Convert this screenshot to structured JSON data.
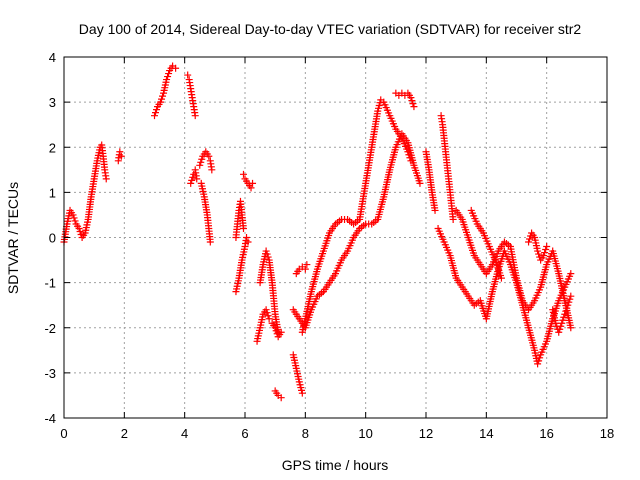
{
  "chart_data": {
    "type": "scatter",
    "title": "Day 100 of 2014, Sidereal Day-to-day VTEC variation (SDTVAR) for receiver str2",
    "xlabel": "GPS time / hours",
    "ylabel": "SDTVAR / TECUs",
    "xlim": [
      0,
      18
    ],
    "ylim": [
      -4,
      4
    ],
    "xticks": [
      0,
      2,
      4,
      6,
      8,
      10,
      12,
      14,
      16,
      18
    ],
    "yticks": [
      -4,
      -3,
      -2,
      -1,
      0,
      1,
      2,
      3,
      4
    ],
    "xtick_labels": [
      "0",
      "2",
      "4",
      "6",
      "8",
      "10",
      "12",
      "14",
      "16",
      "18"
    ],
    "ytick_labels": [
      "-4",
      "-3",
      "-2",
      "-1",
      "0",
      "1",
      "2",
      "3",
      "4"
    ],
    "grid": true,
    "marker": "plus",
    "color": "#ff0000",
    "segments": [
      {
        "x": [
          0.0,
          0.1,
          0.2,
          0.3,
          0.4,
          0.5,
          0.6,
          0.7,
          0.8,
          0.9,
          1.0,
          1.1,
          1.2,
          1.25,
          1.3,
          1.35,
          1.4
        ],
        "y": [
          -0.1,
          0.3,
          0.6,
          0.5,
          0.3,
          0.2,
          0.0,
          0.1,
          0.4,
          0.9,
          1.3,
          1.7,
          2.0,
          2.05,
          1.8,
          1.5,
          1.3
        ]
      },
      {
        "x": [
          1.8,
          1.85,
          1.9
        ],
        "y": [
          1.7,
          1.9,
          1.8
        ]
      },
      {
        "x": [
          3.0,
          3.1,
          3.2,
          3.3,
          3.4,
          3.5,
          3.6,
          3.7
        ],
        "y": [
          2.7,
          2.9,
          3.0,
          3.2,
          3.5,
          3.7,
          3.8,
          3.75
        ]
      },
      {
        "x": [
          4.1,
          4.15,
          4.2,
          4.25,
          4.3,
          4.35
        ],
        "y": [
          3.6,
          3.5,
          3.3,
          3.1,
          2.9,
          2.7
        ]
      },
      {
        "x": [
          4.2,
          4.3,
          4.35,
          4.4
        ],
        "y": [
          1.2,
          1.4,
          1.5,
          1.3
        ]
      },
      {
        "x": [
          4.5,
          4.6,
          4.7,
          4.8,
          4.85,
          4.9
        ],
        "y": [
          1.6,
          1.8,
          1.9,
          1.8,
          1.7,
          1.5
        ]
      },
      {
        "x": [
          4.55,
          4.65,
          4.75,
          4.8,
          4.85
        ],
        "y": [
          1.2,
          0.9,
          0.5,
          0.2,
          -0.1
        ]
      },
      {
        "x": [
          5.7,
          5.8,
          5.9,
          6.0,
          6.05,
          6.1
        ],
        "y": [
          -1.2,
          -0.9,
          -0.5,
          -0.2,
          0.0,
          -0.1
        ]
      },
      {
        "x": [
          5.7,
          5.75,
          5.8,
          5.85,
          5.9,
          5.95
        ],
        "y": [
          0.0,
          0.3,
          0.6,
          0.8,
          0.5,
          0.2
        ]
      },
      {
        "x": [
          5.95,
          6.0,
          6.1,
          6.2,
          6.25
        ],
        "y": [
          1.4,
          1.3,
          1.2,
          1.1,
          1.2
        ]
      },
      {
        "x": [
          6.5,
          6.6,
          6.7,
          6.8,
          6.9,
          7.0,
          7.1
        ],
        "y": [
          -1.0,
          -0.6,
          -0.3,
          -0.5,
          -1.0,
          -1.7,
          -2.1
        ]
      },
      {
        "x": [
          6.4,
          6.5,
          6.6,
          6.7,
          6.8
        ],
        "y": [
          -2.3,
          -2.0,
          -1.7,
          -1.6,
          -1.8
        ]
      },
      {
        "x": [
          6.9,
          7.0,
          7.1,
          7.2
        ],
        "y": [
          -1.9,
          -2.0,
          -2.2,
          -2.1
        ]
      },
      {
        "x": [
          7.0,
          7.1,
          7.2
        ],
        "y": [
          -3.4,
          -3.5,
          -3.55
        ]
      },
      {
        "x": [
          7.6,
          7.7,
          7.8,
          7.9
        ],
        "y": [
          -2.6,
          -2.9,
          -3.2,
          -3.45
        ]
      },
      {
        "x": [
          7.7,
          7.8,
          7.9,
          8.0,
          8.05
        ],
        "y": [
          -0.8,
          -0.7,
          -0.65,
          -0.7,
          -0.6
        ]
      },
      {
        "x": [
          7.9,
          8.0,
          8.2,
          8.4,
          8.6,
          8.8,
          9.0,
          9.2,
          9.4,
          9.6,
          9.8,
          10.0,
          10.2,
          10.4,
          10.5,
          10.6,
          10.8,
          11.0,
          11.2,
          11.4,
          11.5
        ],
        "y": [
          -2.1,
          -1.8,
          -1.2,
          -0.7,
          -0.3,
          0.1,
          0.3,
          0.4,
          0.4,
          0.3,
          0.4,
          1.2,
          2.0,
          2.8,
          3.05,
          3.0,
          2.7,
          2.4,
          2.2,
          1.9,
          1.7
        ]
      },
      {
        "x": [
          7.6,
          7.8,
          8.0,
          8.2,
          8.4,
          8.6,
          8.8,
          9.0,
          9.2,
          9.4,
          9.6,
          9.8,
          10.0,
          10.2,
          10.4,
          10.6,
          10.8,
          11.0,
          11.2,
          11.4,
          11.6,
          11.8
        ],
        "y": [
          -1.6,
          -1.8,
          -2.0,
          -1.6,
          -1.3,
          -1.2,
          -1.0,
          -0.8,
          -0.5,
          -0.3,
          0.0,
          0.2,
          0.3,
          0.3,
          0.4,
          0.9,
          1.5,
          2.0,
          2.3,
          2.1,
          1.6,
          1.2
        ]
      },
      {
        "x": [
          11.0,
          11.1,
          11.2,
          11.3,
          11.4,
          11.5,
          11.6
        ],
        "y": [
          3.2,
          3.15,
          3.2,
          3.15,
          3.2,
          3.1,
          2.9
        ]
      },
      {
        "x": [
          12.0,
          12.1,
          12.2,
          12.3
        ],
        "y": [
          1.9,
          1.5,
          1.0,
          0.6
        ]
      },
      {
        "x": [
          12.5,
          12.55,
          12.6,
          12.7,
          12.8,
          12.9
        ],
        "y": [
          2.7,
          2.5,
          2.2,
          1.6,
          1.0,
          0.4
        ]
      },
      {
        "x": [
          12.4,
          12.6,
          12.8,
          13.0,
          13.2,
          13.4,
          13.6,
          13.8,
          14.0,
          14.2,
          14.4,
          14.6,
          14.8,
          15.0,
          15.2,
          15.4,
          15.6,
          15.7,
          15.8,
          16.0,
          16.2,
          16.4,
          16.6,
          16.8
        ],
        "y": [
          0.2,
          -0.1,
          -0.4,
          -0.9,
          -1.1,
          -1.3,
          -1.5,
          -1.4,
          -1.8,
          -1.2,
          -0.7,
          -0.3,
          -0.6,
          -1.0,
          -1.5,
          -2.0,
          -2.5,
          -2.8,
          -2.6,
          -2.3,
          -1.8,
          -1.4,
          -1.1,
          -0.8
        ]
      },
      {
        "x": [
          13.0,
          13.2,
          13.4,
          13.6,
          13.8,
          14.0,
          14.2,
          14.4,
          14.6,
          14.8,
          15.0,
          15.2,
          15.4,
          15.6,
          15.8,
          16.0,
          16.2,
          16.4,
          16.6,
          16.8
        ],
        "y": [
          0.6,
          0.4,
          0.0,
          -0.4,
          -0.6,
          -0.8,
          -0.6,
          -0.3,
          -0.1,
          -0.2,
          -0.9,
          -1.4,
          -1.6,
          -1.4,
          -1.1,
          -0.6,
          -0.3,
          -0.8,
          -1.4,
          -2.0
        ]
      },
      {
        "x": [
          15.4,
          15.5,
          15.6,
          15.7,
          15.8,
          15.9,
          16.0
        ],
        "y": [
          -0.1,
          0.1,
          0.0,
          -0.3,
          -0.5,
          -0.4,
          -0.2
        ]
      },
      {
        "x": [
          16.2,
          16.3,
          16.4,
          16.5,
          16.6,
          16.7,
          16.8
        ],
        "y": [
          -1.6,
          -1.9,
          -2.1,
          -1.9,
          -1.7,
          -1.5,
          -1.3
        ]
      },
      {
        "x": [
          13.5,
          13.7,
          13.9,
          14.1,
          14.3,
          14.5
        ],
        "y": [
          0.6,
          0.3,
          0.1,
          -0.2,
          -0.5,
          -0.9
        ]
      }
    ]
  }
}
